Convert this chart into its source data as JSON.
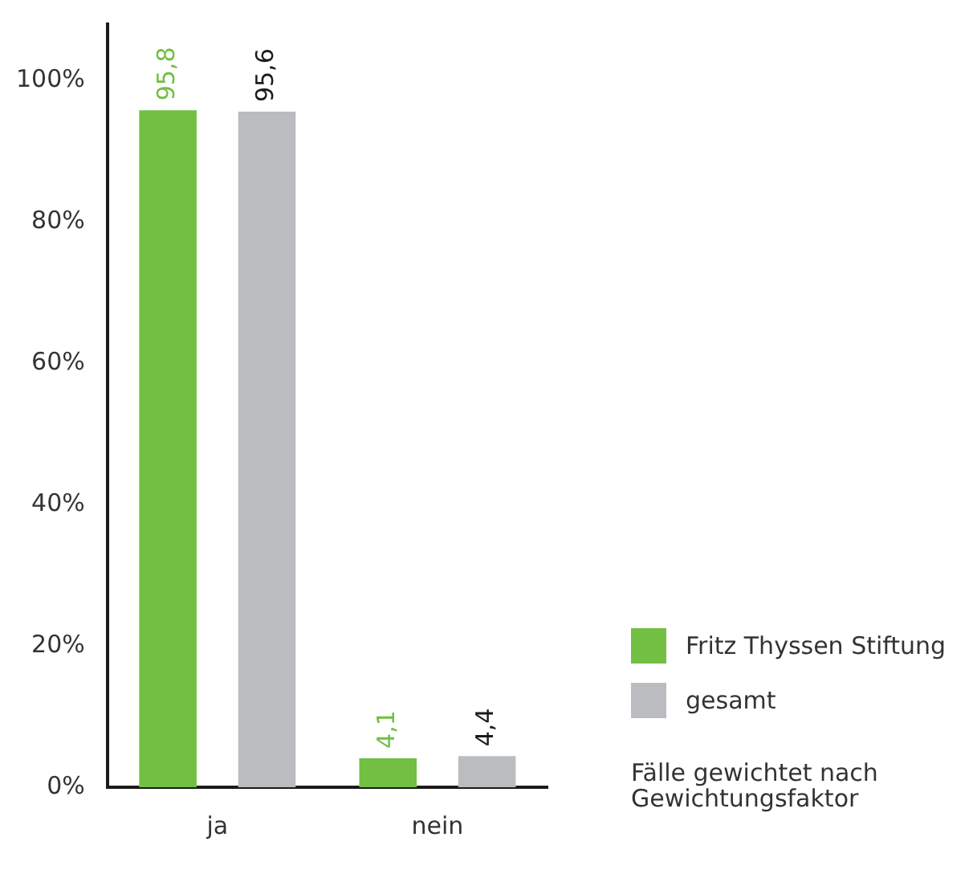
{
  "chart_data": {
    "type": "bar",
    "categories": [
      "ja",
      "nein"
    ],
    "series": [
      {
        "name": "Fritz Thyssen Stiftung",
        "color": "#72bf44",
        "values": [
          95.8,
          4.1
        ],
        "value_labels": [
          "95,8",
          "4,1"
        ]
      },
      {
        "name": "gesamt",
        "color": "#bbbcc0",
        "values": [
          95.6,
          4.4
        ],
        "value_labels": [
          "95,6",
          "4,4"
        ]
      }
    ],
    "ylim": [
      0,
      108
    ],
    "yticks": [
      {
        "value": 0,
        "label": "0%"
      },
      {
        "value": 20,
        "label": "20%"
      },
      {
        "value": 40,
        "label": "40%"
      },
      {
        "value": 60,
        "label": "60%"
      },
      {
        "value": 80,
        "label": "80%"
      },
      {
        "value": 100,
        "label": "100%"
      }
    ],
    "grid": false,
    "legend": "bottom right",
    "annotations": [
      "Fälle gewichtet nach Gewichtungsfaktor"
    ]
  }
}
